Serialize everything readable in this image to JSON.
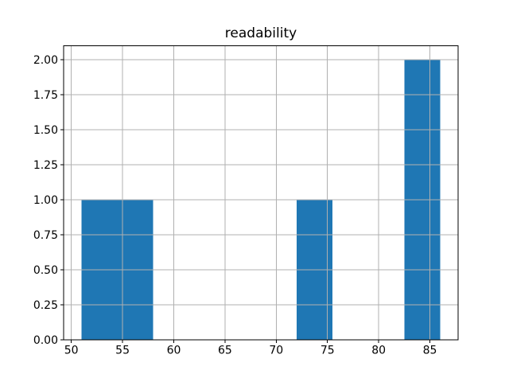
{
  "figure": {
    "background": "#ffffff"
  },
  "chart_data": {
    "type": "bar",
    "subtype": "histogram",
    "title": "readability",
    "xlabel": "",
    "ylabel": "",
    "bin_edges": [
      51.0,
      54.5,
      58.0,
      61.5,
      65.0,
      68.5,
      72.0,
      75.5,
      79.0,
      82.5,
      86.0
    ],
    "counts": [
      1,
      1,
      0,
      0,
      0,
      0,
      1,
      0,
      0,
      2
    ],
    "xlim": [
      49.25,
      87.75
    ],
    "ylim": [
      0,
      2.1
    ],
    "xticks": [
      50,
      55,
      60,
      65,
      70,
      75,
      80,
      85
    ],
    "xtick_labels": [
      "50",
      "55",
      "60",
      "65",
      "70",
      "75",
      "80",
      "85"
    ],
    "yticks": [
      0.0,
      0.25,
      0.5,
      0.75,
      1.0,
      1.25,
      1.5,
      1.75,
      2.0
    ],
    "ytick_labels": [
      "0.00",
      "0.25",
      "0.50",
      "0.75",
      "1.00",
      "1.25",
      "1.50",
      "1.75",
      "2.00"
    ],
    "grid": true,
    "grid_above_bars": true,
    "legend_position": "none",
    "colors": {
      "bar": "#1f77b4",
      "grid": "#b0b0b0",
      "axis": "#000000",
      "text": "#000000"
    }
  }
}
